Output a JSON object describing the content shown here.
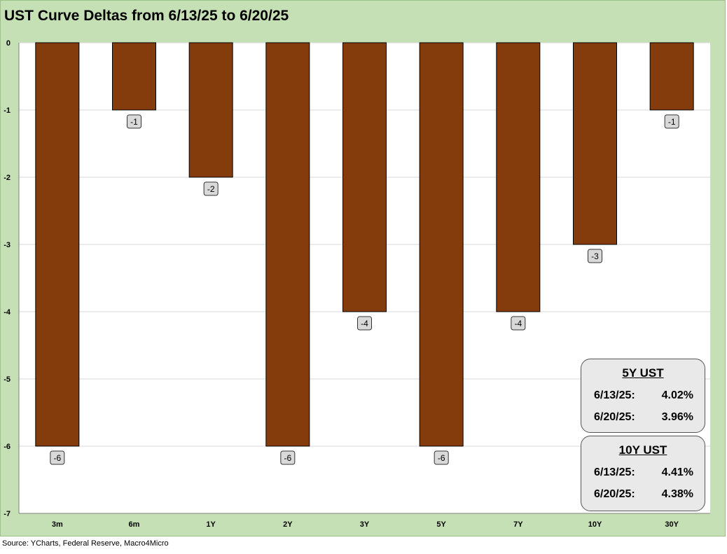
{
  "title": "UST Curve Deltas from 6/13/25 to 6/20/25",
  "source": "Source: YCharts, Federal Reserve, Macro4Micro",
  "colors": {
    "bar": "#843c0c",
    "background": "#c5e0b4",
    "plot": "#ffffff",
    "label_box": "#d9d9d9"
  },
  "chart_data": {
    "type": "bar",
    "title": "UST Curve Deltas from 6/13/25 to 6/20/25",
    "categories": [
      "3m",
      "6m",
      "1Y",
      "2Y",
      "3Y",
      "5Y",
      "7Y",
      "10Y",
      "30Y"
    ],
    "values": [
      -6,
      -1,
      -2,
      -6,
      -4,
      -6,
      -4,
      -3,
      -1
    ],
    "data_labels": [
      "-6",
      "-1",
      "-2",
      "-6",
      "-4",
      "-6",
      "-4",
      "-3",
      "-1"
    ],
    "ylim": [
      -7,
      0
    ],
    "yticks": [
      "0",
      "-1",
      "-2",
      "-3",
      "-4",
      "-5",
      "-6",
      "-7"
    ],
    "grid": true,
    "xlabel": "",
    "ylabel": ""
  },
  "boxes": [
    {
      "title": "5Y UST",
      "rows": [
        {
          "date": "6/13/25:",
          "value": "4.02%"
        },
        {
          "date": "6/20/25:",
          "value": "3.96%"
        }
      ]
    },
    {
      "title": "10Y UST",
      "rows": [
        {
          "date": "6/13/25:",
          "value": "4.41%"
        },
        {
          "date": "6/20/25:",
          "value": "4.38%"
        }
      ]
    }
  ]
}
